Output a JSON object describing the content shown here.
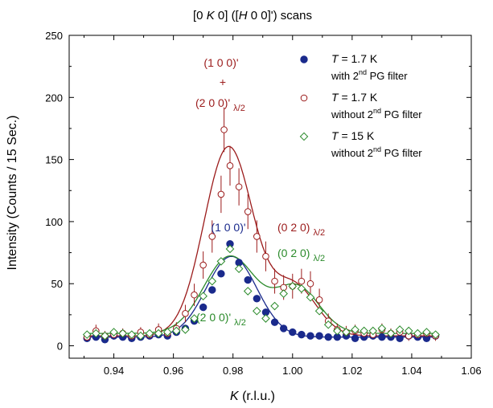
{
  "chart_data": {
    "type": "scatter",
    "title": "[0 K 0] ([H 0 0]') scans",
    "title_parts": [
      "[0 ",
      "K",
      " 0] ([",
      "H",
      " 0 0]') scans"
    ],
    "xlabel": "K (r.l.u.)",
    "xlabel_parts": [
      "K",
      " (r.l.u.)"
    ],
    "ylabel": "Intensity (Counts / 15 Sec.)",
    "xlim": [
      0.925,
      1.06
    ],
    "ylim": [
      -10,
      250
    ],
    "x_ticks": [
      0.94,
      0.96,
      0.98,
      1.0,
      1.02,
      1.04,
      1.06
    ],
    "x_tick_labels": [
      "0.94",
      "0.96",
      "0.98",
      "1.00",
      "1.02",
      "1.04",
      "1.06"
    ],
    "y_ticks": [
      0,
      50,
      100,
      150,
      200,
      250
    ],
    "y_tick_labels": [
      "0",
      "50",
      "100",
      "150",
      "200",
      "250"
    ],
    "grid": false,
    "legend_position": "top-right",
    "series": [
      {
        "name": "T = 1.7 K with 2nd PG filter",
        "legend": {
          "t": "T",
          "main": " = 1.7 K",
          "line2a": "with 2",
          "sup": "nd",
          "line2b": " PG filter"
        },
        "marker": "circle-filled",
        "color": "#1a2a8c",
        "x": [
          0.931,
          0.934,
          0.937,
          0.94,
          0.943,
          0.946,
          0.949,
          0.952,
          0.955,
          0.958,
          0.961,
          0.964,
          0.967,
          0.97,
          0.973,
          0.976,
          0.979,
          0.982,
          0.985,
          0.988,
          0.991,
          0.994,
          0.997,
          1.0,
          1.003,
          1.006,
          1.009,
          1.012,
          1.015,
          1.018,
          1.021,
          1.024,
          1.027,
          1.03,
          1.033,
          1.036,
          1.039,
          1.042,
          1.045,
          1.048
        ],
        "y": [
          6,
          7,
          5,
          8,
          7,
          6,
          7,
          8,
          9,
          8,
          11,
          14,
          20,
          31,
          45,
          58,
          82,
          67,
          53,
          38,
          27,
          19,
          14,
          11,
          9,
          8,
          8,
          7,
          7,
          8,
          6,
          7,
          8,
          7,
          7,
          6,
          8,
          7,
          6,
          8
        ],
        "fit": {
          "baseline": 7,
          "amplitude": 65,
          "center": 0.9795,
          "sigma": 0.0085
        }
      },
      {
        "name": "T = 1.7 K without 2nd PG filter",
        "legend": {
          "t": "T",
          "main": " = 1.7 K",
          "line2a": "without 2",
          "sup": "nd",
          "line2b": " PG filter"
        },
        "marker": "circle-open",
        "color": "#9b1b1b",
        "x": [
          0.931,
          0.934,
          0.937,
          0.94,
          0.943,
          0.946,
          0.949,
          0.952,
          0.955,
          0.958,
          0.961,
          0.964,
          0.967,
          0.97,
          0.973,
          0.976,
          0.977,
          0.979,
          0.982,
          0.985,
          0.988,
          0.991,
          0.994,
          0.997,
          1.0,
          1.003,
          1.006,
          1.009,
          1.012,
          1.015,
          1.018,
          1.021,
          1.024,
          1.027,
          1.03,
          1.033,
          1.036,
          1.039,
          1.042,
          1.045,
          1.048
        ],
        "y": [
          7,
          12,
          8,
          9,
          10,
          8,
          11,
          9,
          13,
          10,
          14,
          26,
          41,
          65,
          88,
          122,
          174,
          145,
          128,
          108,
          88,
          72,
          52,
          47,
          48,
          52,
          50,
          37,
          20,
          13,
          11,
          12,
          10,
          9,
          13,
          10,
          11,
          8,
          9,
          10,
          8
        ],
        "errors": [
          4,
          5,
          4,
          4,
          4,
          4,
          4,
          4,
          5,
          4,
          5,
          7,
          9,
          11,
          13,
          15,
          18,
          16,
          15,
          14,
          13,
          12,
          10,
          10,
          10,
          10,
          10,
          9,
          6,
          5,
          5,
          5,
          5,
          4,
          5,
          4,
          5,
          4,
          4,
          4,
          4
        ],
        "fit": {
          "baseline": 8,
          "amplitude": 152,
          "center": 0.9785,
          "sigma": 0.0082,
          "amplitude2": 40,
          "center2": 1.0005,
          "sigma2": 0.0075
        }
      },
      {
        "name": "T = 15 K without 2nd PG filter",
        "legend": {
          "t": "T",
          "main": " = 15 K",
          "line2a": "without 2",
          "sup": "nd",
          "line2b": " PG filter"
        },
        "marker": "diamond-open",
        "color": "#2a8a2a",
        "x": [
          0.931,
          0.934,
          0.937,
          0.94,
          0.943,
          0.946,
          0.949,
          0.952,
          0.955,
          0.958,
          0.961,
          0.964,
          0.967,
          0.97,
          0.973,
          0.976,
          0.979,
          0.982,
          0.985,
          0.988,
          0.991,
          0.994,
          0.997,
          1.0,
          1.003,
          1.006,
          1.009,
          1.012,
          1.015,
          1.018,
          1.021,
          1.024,
          1.027,
          1.03,
          1.033,
          1.036,
          1.039,
          1.042,
          1.045,
          1.048
        ],
        "y": [
          9,
          10,
          8,
          11,
          10,
          9,
          8,
          10,
          10,
          11,
          12,
          13,
          22,
          40,
          52,
          68,
          78,
          62,
          44,
          28,
          22,
          32,
          42,
          48,
          46,
          39,
          28,
          17,
          12,
          11,
          13,
          12,
          12,
          14,
          10,
          13,
          12,
          10,
          11,
          9
        ],
        "fit": {
          "baseline": 10,
          "amplitude": 62,
          "center": 0.979,
          "sigma": 0.0088,
          "amplitude2": 37,
          "center2": 1.0015,
          "sigma2": 0.0075
        }
      }
    ],
    "annotations": [
      {
        "parts": [
          "(1 0 0)'"
        ],
        "color": "#9b1b1b"
      },
      {
        "parts": [
          "+"
        ],
        "color": "#9b1b1b"
      },
      {
        "parts": [
          "(2 0 0)'",
          "λ/2"
        ],
        "color": "#9b1b1b"
      },
      {
        "parts": [
          "(1 0 0)'"
        ],
        "color": "#1a2a8c"
      },
      {
        "parts": [
          "(0 2 0)",
          "λ/2"
        ],
        "color": "#9b1b1b"
      },
      {
        "parts": [
          "(0 2 0)",
          "λ/2"
        ],
        "color": "#2a8a2a"
      },
      {
        "parts": [
          "(2 0 0)'",
          "λ/2"
        ],
        "color": "#2a8a2a"
      }
    ]
  }
}
